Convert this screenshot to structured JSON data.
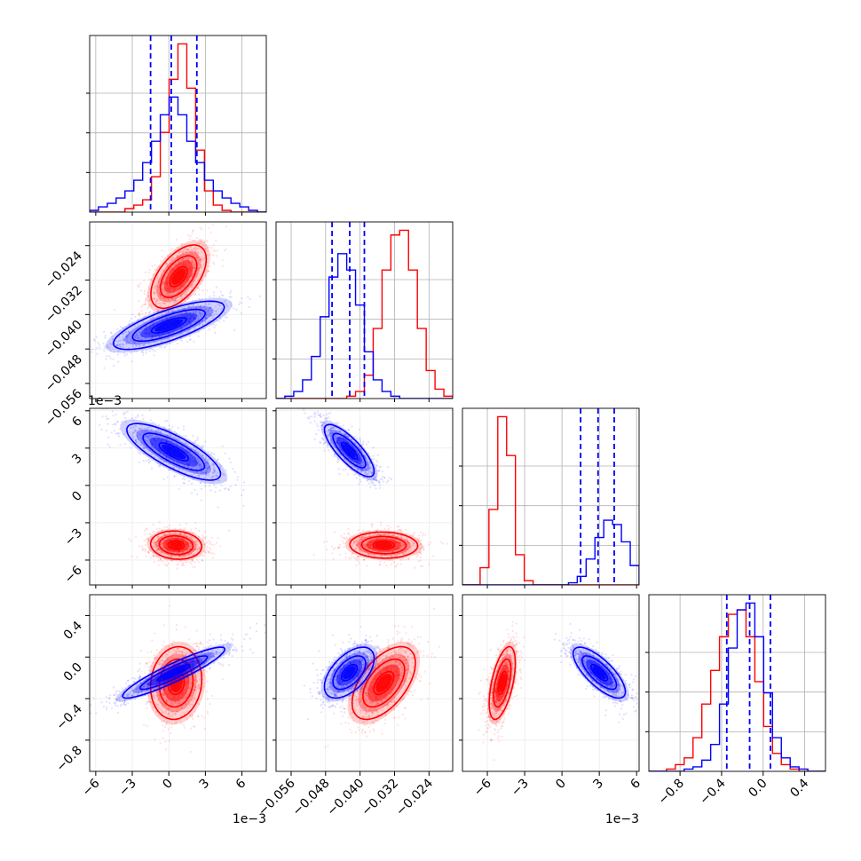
{
  "chart_data": {
    "type": "corner",
    "grid": true,
    "colors": {
      "series_a": "#ff0000",
      "series_b": "#0000ff"
    },
    "series": [
      {
        "color": "#ff0000",
        "description": "red samples"
      },
      {
        "color": "#0000ff",
        "description": "blue samples"
      }
    ],
    "parameters": [
      {
        "range": [
          -6.5,
          8.0
        ],
        "scale_label": "1e−3",
        "ticks": [
          -6,
          -3,
          0,
          3,
          6
        ],
        "tick_labels": [
          "−6",
          "−3",
          "0",
          "3",
          "6"
        ]
      },
      {
        "range": [
          -0.0595,
          -0.0185
        ],
        "scale_label": "",
        "ticks": [
          -0.056,
          -0.048,
          -0.04,
          -0.032,
          -0.024
        ],
        "tick_labels": [
          "−0.056",
          "−0.048",
          "−0.040",
          "−0.032",
          "−0.024"
        ]
      },
      {
        "range": [
          -8.0,
          6.2
        ],
        "scale_label": "1e−3",
        "ticks": [
          -6,
          -3,
          0,
          3,
          6
        ],
        "tick_labels": [
          "−6",
          "−3",
          "0",
          "3",
          "6"
        ]
      },
      {
        "range": [
          -1.1,
          0.6
        ],
        "scale_label": "",
        "ticks": [
          -0.8,
          -0.4,
          0.0,
          0.4
        ],
        "tick_labels": [
          "−0.8",
          "−0.4",
          "0.0",
          "0.4"
        ]
      }
    ],
    "diagonal": [
      {
        "bins": [
          -6.5,
          -5.775,
          -5.05,
          -4.325,
          -3.6,
          -2.875,
          -2.15,
          -1.425,
          -0.7,
          0.025,
          0.75,
          1.475,
          2.2,
          2.925,
          3.65,
          4.375,
          5.1,
          5.825,
          6.55,
          7.275,
          8.0
        ],
        "red_counts": [
          0,
          0,
          0,
          0,
          2,
          4,
          7,
          20,
          45,
          75,
          95,
          70,
          35,
          12,
          4,
          1,
          0,
          0,
          0,
          0
        ],
        "blue_counts": [
          1,
          3,
          5,
          8,
          12,
          18,
          28,
          40,
          55,
          65,
          55,
          40,
          28,
          18,
          12,
          8,
          5,
          3,
          1,
          0
        ],
        "quantile_lines": [
          -1.5,
          0.2,
          2.3
        ]
      },
      {
        "bins": [
          -0.0595,
          -0.05745,
          -0.0554,
          -0.05335,
          -0.0513,
          -0.04925,
          -0.0472,
          -0.04515,
          -0.0431,
          -0.04105,
          -0.039,
          -0.03695,
          -0.0349,
          -0.03285,
          -0.0308,
          -0.02875,
          -0.0267,
          -0.02465,
          -0.0226,
          -0.02055,
          -0.0185
        ],
        "red_counts": [
          0,
          0,
          0,
          0,
          0,
          0,
          0,
          0,
          1,
          3,
          10,
          30,
          55,
          70,
          72,
          55,
          30,
          12,
          4,
          1
        ],
        "blue_counts": [
          0,
          1,
          3,
          8,
          18,
          35,
          52,
          62,
          55,
          40,
          20,
          8,
          3,
          1,
          0,
          0,
          0,
          0,
          0,
          0
        ],
        "quantile_lines": [
          -0.0465,
          -0.0424,
          -0.039
        ]
      },
      {
        "bins": [
          -8.0,
          -7.29,
          -6.58,
          -5.87,
          -5.16,
          -4.45,
          -3.74,
          -3.03,
          -2.32,
          -1.61,
          -0.9,
          -0.19,
          0.52,
          1.23,
          1.94,
          2.65,
          3.36,
          4.07,
          4.78,
          5.49,
          6.2
        ],
        "red_counts": [
          0,
          0,
          8,
          35,
          78,
          60,
          14,
          2,
          0,
          0,
          0,
          0,
          0,
          0,
          0,
          0,
          0,
          0,
          0,
          0
        ],
        "blue_counts": [
          0,
          0,
          0,
          0,
          0,
          0,
          0,
          0,
          0,
          0,
          0,
          0,
          1,
          4,
          12,
          22,
          30,
          28,
          20,
          9
        ],
        "quantile_lines": [
          1.5,
          2.9,
          4.2
        ]
      },
      {
        "bins": [
          -1.1,
          -1.015,
          -0.93,
          -0.845,
          -0.76,
          -0.675,
          -0.59,
          -0.505,
          -0.42,
          -0.335,
          -0.25,
          -0.165,
          -0.08,
          0.005,
          0.09,
          0.175,
          0.26,
          0.345,
          0.43,
          0.515,
          0.6
        ],
        "red_counts": [
          0,
          0,
          1,
          3,
          6,
          15,
          30,
          45,
          60,
          70,
          72,
          60,
          40,
          20,
          8,
          3,
          1,
          0,
          0,
          0
        ],
        "blue_counts": [
          0,
          0,
          0,
          0,
          1,
          2,
          5,
          12,
          30,
          55,
          72,
          75,
          60,
          35,
          15,
          6,
          2,
          1,
          0,
          0
        ],
        "quantile_lines": [
          -0.35,
          -0.13,
          0.07
        ]
      }
    ],
    "pairs": [
      {
        "row": 1,
        "col": 0,
        "red": {
          "mean": [
            0.8,
            -0.0312
          ],
          "sd": [
            1.3,
            0.0042
          ],
          "rho": 0.55
        },
        "blue": {
          "mean": [
            0.0,
            -0.0425
          ],
          "sd": [
            2.6,
            0.0032
          ],
          "rho": 0.75
        }
      },
      {
        "row": 2,
        "col": 0,
        "red": {
          "mean": [
            0.6,
            -4.8
          ],
          "sd": [
            1.2,
            0.65
          ],
          "rho": -0.1
        },
        "blue": {
          "mean": [
            0.4,
            2.7
          ],
          "sd": [
            2.2,
            1.3
          ],
          "rho": -0.78
        }
      },
      {
        "row": 2,
        "col": 1,
        "red": {
          "mean": [
            -0.0345,
            -4.8
          ],
          "sd": [
            0.0045,
            0.6
          ],
          "rho": -0.05
        },
        "blue": {
          "mean": [
            -0.0425,
            2.8
          ],
          "sd": [
            0.0033,
            1.2
          ],
          "rho": -0.8
        }
      },
      {
        "row": 3,
        "col": 0,
        "red": {
          "mean": [
            0.6,
            -0.25
          ],
          "sd": [
            1.2,
            0.2
          ],
          "rho": 0.1
        },
        "blue": {
          "mean": [
            0.4,
            -0.15
          ],
          "sd": [
            2.4,
            0.14
          ],
          "rho": 0.92
        }
      },
      {
        "row": 3,
        "col": 1,
        "red": {
          "mean": [
            -0.0345,
            -0.25
          ],
          "sd": [
            0.0042,
            0.2
          ],
          "rho": 0.55
        },
        "blue": {
          "mean": [
            -0.0425,
            -0.15
          ],
          "sd": [
            0.0033,
            0.14
          ],
          "rho": 0.55
        }
      },
      {
        "row": 3,
        "col": 2,
        "red": {
          "mean": [
            -4.8,
            -0.25
          ],
          "sd": [
            0.6,
            0.2
          ],
          "rho": 0.55
        },
        "blue": {
          "mean": [
            3.0,
            -0.15
          ],
          "sd": [
            1.2,
            0.14
          ],
          "rho": -0.75
        }
      }
    ]
  }
}
